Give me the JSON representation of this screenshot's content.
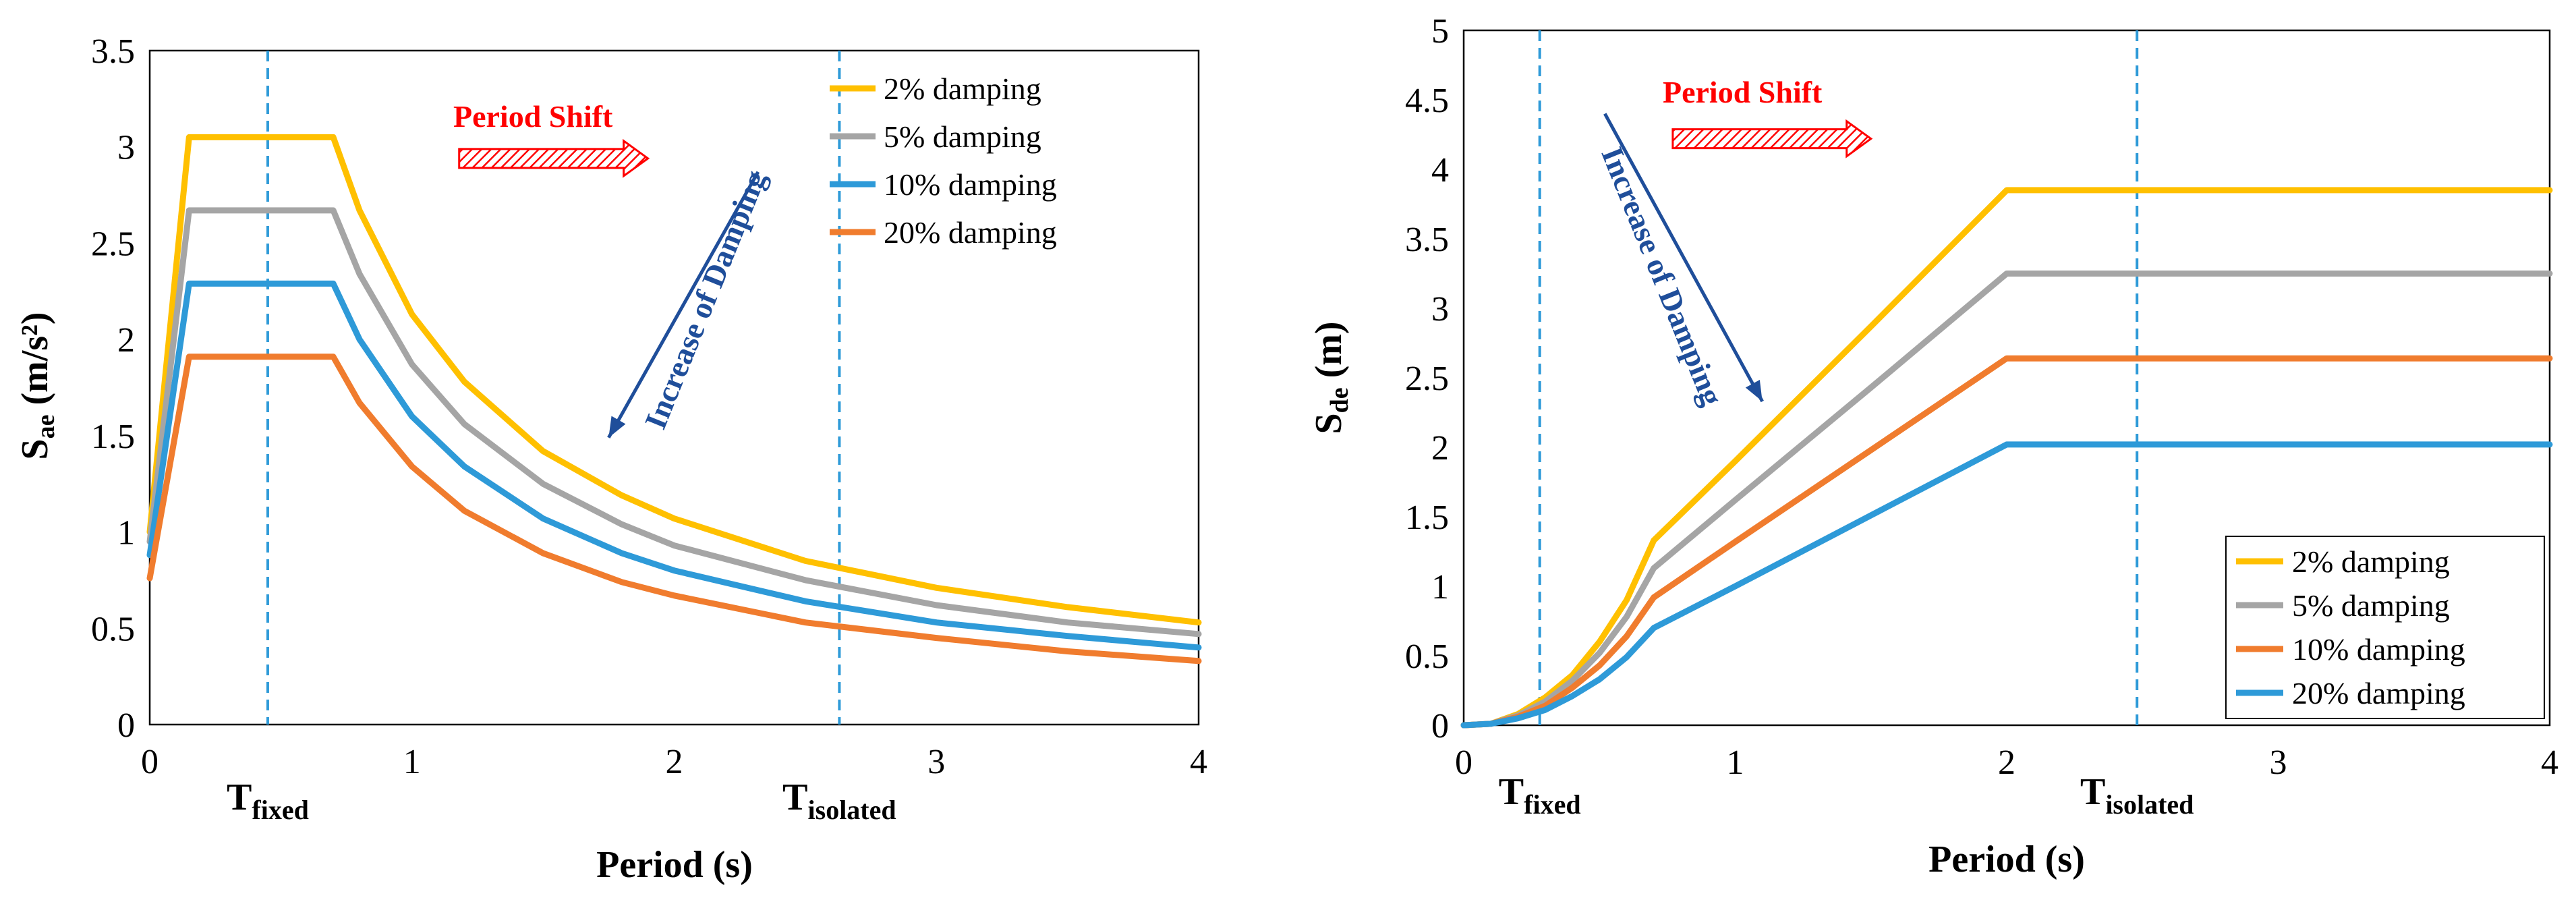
{
  "colors": {
    "d2": "#FFC000",
    "d5": "#A5A5A5",
    "d10": "#2E9AD8",
    "d20": "#F07C2E",
    "vline": "#2E9AD8",
    "arrow_blue": "#1f4e9a",
    "arrow_red": "#ff0000",
    "annotation_red": "#ff0000",
    "annotation_blue": "#1f4e9a"
  },
  "chart_data": [
    {
      "type": "line",
      "title": "",
      "xlabel": "Period (s)",
      "ylabel_main": "S",
      "ylabel_sub": "ae",
      "ylabel_unit": "(m/s²)",
      "xlim": [
        0,
        4
      ],
      "ylim": [
        0,
        3.5
      ],
      "x_ticks": [
        "0",
        "1",
        "2",
        "3",
        "4"
      ],
      "y_ticks": [
        "0",
        "0.5",
        "1",
        "1.5",
        "2",
        "2.5",
        "3",
        "3.5"
      ],
      "x_tick_values": [
        0,
        1,
        2,
        3,
        4
      ],
      "y_tick_values": [
        0,
        0.5,
        1,
        1.5,
        2,
        2.5,
        3,
        3.5
      ],
      "legend_position": "top-right",
      "series": [
        {
          "name": "2% damping",
          "color_key": "d2",
          "points": [
            [
              0,
              1.0
            ],
            [
              0.15,
              3.05
            ],
            [
              0.7,
              3.05
            ],
            [
              0.8,
              2.67
            ],
            [
              1.0,
              2.13
            ],
            [
              1.2,
              1.78
            ],
            [
              1.5,
              1.42
            ],
            [
              1.8,
              1.19
            ],
            [
              2.0,
              1.07
            ],
            [
              2.5,
              0.85
            ],
            [
              3.0,
              0.71
            ],
            [
              3.5,
              0.61
            ],
            [
              4.0,
              0.53
            ]
          ]
        },
        {
          "name": "5% damping",
          "color_key": "d5",
          "points": [
            [
              0,
              0.95
            ],
            [
              0.15,
              2.67
            ],
            [
              0.7,
              2.67
            ],
            [
              0.8,
              2.34
            ],
            [
              1.0,
              1.87
            ],
            [
              1.2,
              1.56
            ],
            [
              1.5,
              1.25
            ],
            [
              1.8,
              1.04
            ],
            [
              2.0,
              0.93
            ],
            [
              2.5,
              0.75
            ],
            [
              3.0,
              0.62
            ],
            [
              3.5,
              0.53
            ],
            [
              4.0,
              0.47
            ]
          ]
        },
        {
          "name": "10% damping",
          "color_key": "d10",
          "points": [
            [
              0,
              0.88
            ],
            [
              0.15,
              2.29
            ],
            [
              0.7,
              2.29
            ],
            [
              0.8,
              2.0
            ],
            [
              1.0,
              1.6
            ],
            [
              1.2,
              1.34
            ],
            [
              1.5,
              1.07
            ],
            [
              1.8,
              0.89
            ],
            [
              2.0,
              0.8
            ],
            [
              2.5,
              0.64
            ],
            [
              3.0,
              0.53
            ],
            [
              3.5,
              0.46
            ],
            [
              4.0,
              0.4
            ]
          ]
        },
        {
          "name": "20% damping",
          "color_key": "d20",
          "points": [
            [
              0,
              0.76
            ],
            [
              0.15,
              1.91
            ],
            [
              0.7,
              1.91
            ],
            [
              0.8,
              1.67
            ],
            [
              1.0,
              1.34
            ],
            [
              1.2,
              1.11
            ],
            [
              1.5,
              0.89
            ],
            [
              1.8,
              0.74
            ],
            [
              2.0,
              0.67
            ],
            [
              2.5,
              0.53
            ],
            [
              3.0,
              0.45
            ],
            [
              3.5,
              0.38
            ],
            [
              4.0,
              0.33
            ]
          ]
        }
      ],
      "vlines": [
        {
          "x": 0.45,
          "label_main": "T",
          "label_sub": "fixed"
        },
        {
          "x": 2.63,
          "label_main": "T",
          "label_sub": "isolated"
        }
      ],
      "annotations": {
        "period_shift": "Period Shift",
        "damping": "Increase of Damping",
        "damping_arrow_from": [
          2.32,
          2.87
        ],
        "damping_arrow_to": [
          1.75,
          1.49
        ],
        "shift_arrow_from": [
          1.18,
          2.94
        ],
        "shift_arrow_to": [
          1.9,
          2.94
        ]
      }
    },
    {
      "type": "line",
      "title": "",
      "xlabel": "Period (s)",
      "ylabel_main": "S",
      "ylabel_sub": "de",
      "ylabel_unit": "(m)",
      "xlim": [
        0,
        4
      ],
      "ylim": [
        0,
        5
      ],
      "x_ticks": [
        "0",
        "1",
        "2",
        "3",
        "4"
      ],
      "y_ticks": [
        "0",
        "0.5",
        "1",
        "1.5",
        "2",
        "2.5",
        "3",
        "3.5",
        "4",
        "4.5",
        "5"
      ],
      "x_tick_values": [
        0,
        1,
        2,
        3,
        4
      ],
      "y_tick_values": [
        0,
        0.5,
        1,
        1.5,
        2,
        2.5,
        3,
        3.5,
        4,
        4.5,
        5
      ],
      "legend_position": "bottom-right",
      "series": [
        {
          "name": "2% damping",
          "color_key": "d2",
          "points": [
            [
              0,
              0
            ],
            [
              0.1,
              0.01
            ],
            [
              0.2,
              0.08
            ],
            [
              0.3,
              0.2
            ],
            [
              0.4,
              0.36
            ],
            [
              0.5,
              0.6
            ],
            [
              0.6,
              0.9
            ],
            [
              0.7,
              1.33
            ],
            [
              1.0,
              1.9
            ],
            [
              1.5,
              2.87
            ],
            [
              2.0,
              3.85
            ],
            [
              4.0,
              3.85
            ]
          ]
        },
        {
          "name": "5% damping",
          "color_key": "d5",
          "points": [
            [
              0,
              0
            ],
            [
              0.1,
              0.01
            ],
            [
              0.2,
              0.07
            ],
            [
              0.3,
              0.17
            ],
            [
              0.4,
              0.32
            ],
            [
              0.5,
              0.52
            ],
            [
              0.6,
              0.78
            ],
            [
              0.7,
              1.13
            ],
            [
              1.0,
              1.62
            ],
            [
              1.5,
              2.43
            ],
            [
              2.0,
              3.25
            ],
            [
              4.0,
              3.25
            ]
          ]
        },
        {
          "name": "10% damping",
          "color_key": "d10",
          "points": [
            [
              0,
              0
            ],
            [
              0.1,
              0.01
            ],
            [
              0.2,
              0.06
            ],
            [
              0.3,
              0.14
            ],
            [
              0.4,
              0.27
            ],
            [
              0.5,
              0.43
            ],
            [
              0.6,
              0.64
            ],
            [
              0.7,
              0.92
            ],
            [
              1.0,
              1.32
            ],
            [
              1.5,
              1.98
            ],
            [
              2.0,
              2.64
            ],
            [
              4.0,
              2.64
            ]
          ]
        },
        {
          "name": "20% damping",
          "color_key": "d20",
          "points": [
            [
              0,
              0
            ],
            [
              0.1,
              0.01
            ],
            [
              0.2,
              0.05
            ],
            [
              0.3,
              0.11
            ],
            [
              0.4,
              0.21
            ],
            [
              0.5,
              0.33
            ],
            [
              0.6,
              0.49
            ],
            [
              0.7,
              0.7
            ],
            [
              1.0,
              1.0
            ],
            [
              1.5,
              1.51
            ],
            [
              2.0,
              2.02
            ],
            [
              4.0,
              2.02
            ]
          ]
        }
      ],
      "series_colors_override": [
        "d2",
        "d5",
        "d20",
        "d10"
      ],
      "vlines": [
        {
          "x": 0.28,
          "label_main": "T",
          "label_sub": "fixed"
        },
        {
          "x": 2.48,
          "label_main": "T",
          "label_sub": "isolated"
        }
      ],
      "annotations": {
        "period_shift": "Period Shift",
        "damping": "Increase of Damping",
        "damping_arrow_from": [
          0.52,
          4.4
        ],
        "damping_arrow_to": [
          1.1,
          2.33
        ],
        "shift_arrow_from": [
          0.77,
          4.22
        ],
        "shift_arrow_to": [
          1.5,
          4.22
        ]
      }
    }
  ]
}
